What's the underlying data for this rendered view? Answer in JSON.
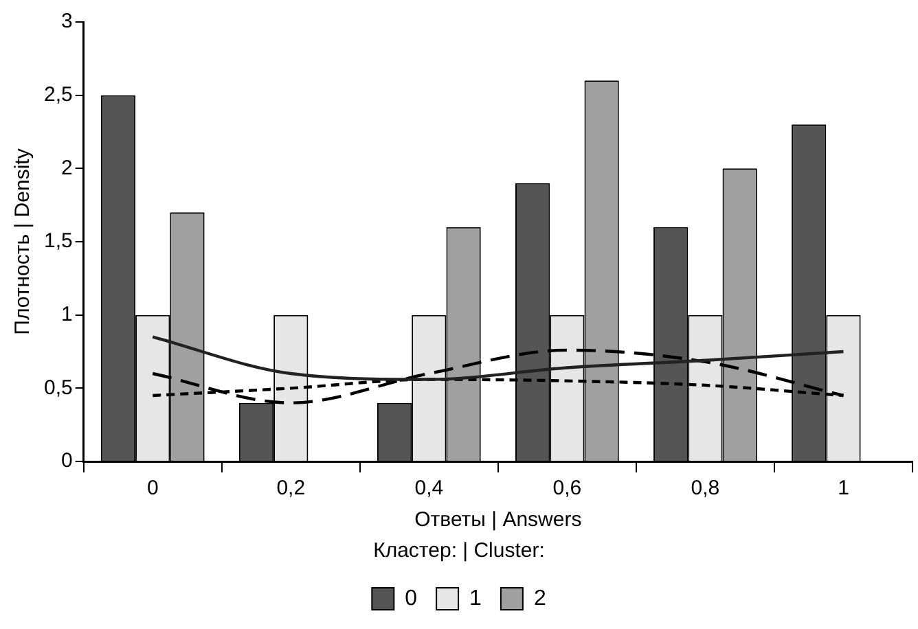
{
  "chart_data": {
    "type": "bar",
    "xlabel": "Ответы | Answers",
    "ylabel": "Плотность | Density",
    "legend_title": "Кластер: | Cluster:",
    "categories": [
      "0",
      "0,2",
      "0,4",
      "0,6",
      "0,8",
      "1"
    ],
    "series": [
      {
        "name": "0",
        "color": "#555555",
        "values": [
          2.5,
          0.4,
          0.4,
          1.9,
          1.6,
          2.3
        ]
      },
      {
        "name": "1",
        "color": "#e6e6e6",
        "values": [
          1,
          1,
          1,
          1,
          1,
          1
        ]
      },
      {
        "name": "2",
        "color": "#a0a0a0",
        "values": [
          1.7,
          0,
          1.6,
          2.6,
          2,
          0
        ]
      },
      {
        "type": "line",
        "color": "#222222",
        "line_style": "solid",
        "values": [
          0.85,
          0.6,
          0.56,
          0.64,
          0.69,
          0.75
        ]
      },
      {
        "type": "line",
        "color": "#000000",
        "line_style": "dashed",
        "values": [
          0.6,
          0.4,
          0.6,
          0.76,
          0.68,
          0.45
        ]
      },
      {
        "type": "line",
        "color": "#000000",
        "line_style": "dotted",
        "values": [
          0.45,
          0.5,
          0.56,
          0.55,
          0.52,
          0.45
        ]
      }
    ],
    "ylim": [
      0,
      3
    ],
    "yticks": [
      0,
      {
        "value": 0.5,
        "label": "0,5"
      },
      1,
      {
        "value": 1.5,
        "label": "1,5"
      },
      2,
      {
        "value": 2.5,
        "label": "2,5"
      },
      3
    ],
    "grid": false,
    "legend": "bottom",
    "marker": "none"
  }
}
